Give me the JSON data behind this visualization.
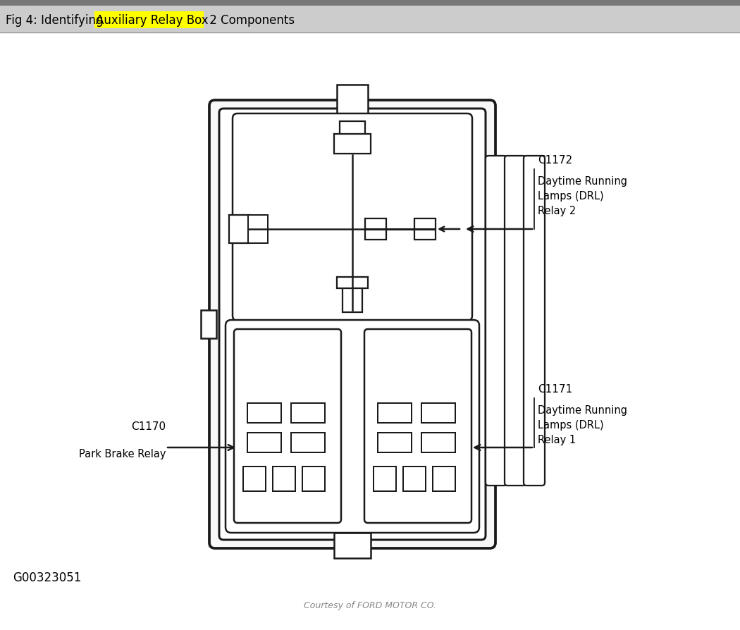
{
  "title_text_1": "Fig 4: Identifying ",
  "title_highlight": "Auxiliary Relay Box",
  "title_suffix": " 2 Components",
  "title_highlight_color": "#ffff00",
  "title_bg_color": "#cccccc",
  "bg_color": "#ffffff",
  "lc": "#1a1a1a",
  "lw": 1.8,
  "label_c1172": "C1172",
  "label_c1172_sub": "Daytime Running\nLamps (DRL)\nRelay 2",
  "label_c1171": "C1171",
  "label_c1171_sub": "Daytime Running\nLamps (DRL)\nRelay 1",
  "label_c1170": "C1170",
  "label_c1170_sub": "Park Brake Relay",
  "watermark": "Courtesy of FORD MOTOR CO.",
  "id_text": "G00323051",
  "fs_title": 12,
  "fs_label": 11,
  "fs_water": 9
}
